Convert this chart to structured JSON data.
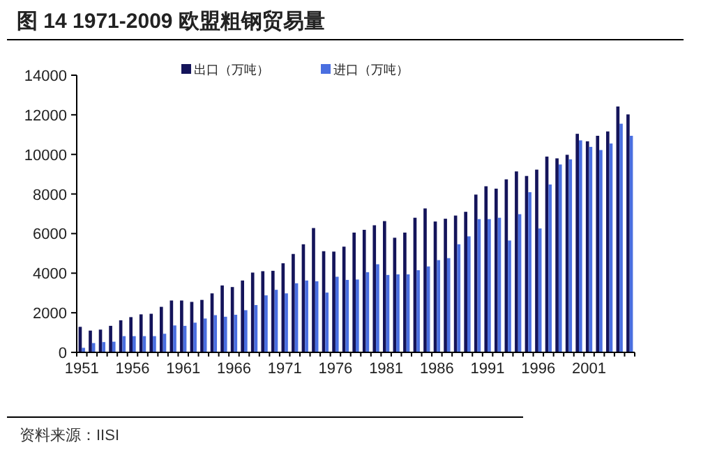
{
  "chart_data": {
    "type": "bar",
    "title": "图 14 1971-2009 欧盟粗钢贸易量",
    "categories": [
      "1951",
      null,
      null,
      null,
      null,
      "1956",
      null,
      null,
      null,
      null,
      "1961",
      null,
      null,
      null,
      null,
      "1966",
      null,
      null,
      null,
      null,
      "1971",
      null,
      null,
      null,
      null,
      "1976",
      null,
      null,
      null,
      null,
      "1981",
      null,
      null,
      null,
      null,
      "1986",
      null,
      null,
      null,
      null,
      "1991",
      null,
      null,
      null,
      null,
      "1996",
      null,
      null,
      null,
      null,
      "2001",
      null,
      null,
      null,
      null
    ],
    "series": [
      {
        "name": "出口（万吨）",
        "color": "#14145a",
        "values": [
          1290,
          1100,
          1150,
          1340,
          1620,
          1780,
          1920,
          1950,
          2300,
          2620,
          2620,
          2550,
          2650,
          2980,
          3380,
          3300,
          3630,
          4030,
          4100,
          4120,
          4500,
          4970,
          5460,
          6280,
          5110,
          5090,
          5340,
          6050,
          6190,
          6420,
          6630,
          5790,
          6050,
          6800,
          7270,
          6610,
          6750,
          6910,
          7100,
          7970,
          8390,
          8270,
          8740,
          9140,
          8910,
          9230,
          9890,
          9800,
          9980,
          11040,
          10660,
          10940,
          11160,
          12420,
          12020
        ]
      },
      {
        "name": "进口（万吨）",
        "color": "#4a6fe0",
        "values": [
          230,
          470,
          520,
          540,
          820,
          820,
          820,
          820,
          940,
          1360,
          1340,
          1500,
          1710,
          1880,
          1800,
          1900,
          2130,
          2390,
          2880,
          3160,
          2980,
          3490,
          3630,
          3590,
          3020,
          3820,
          3660,
          3680,
          4050,
          4450,
          3910,
          3940,
          3940,
          4150,
          4340,
          4660,
          4760,
          5460,
          5860,
          6730,
          6730,
          6800,
          5650,
          6980,
          8090,
          6260,
          8480,
          9490,
          9750,
          10710,
          10380,
          10220,
          10550,
          11550,
          10940
        ]
      }
    ],
    "ylim": [
      0,
      14000
    ],
    "yticks": [
      0,
      2000,
      4000,
      6000,
      8000,
      10000,
      12000,
      14000
    ],
    "legend": "top",
    "grid": false,
    "annotations": [
      "资料来源：IISI"
    ]
  }
}
